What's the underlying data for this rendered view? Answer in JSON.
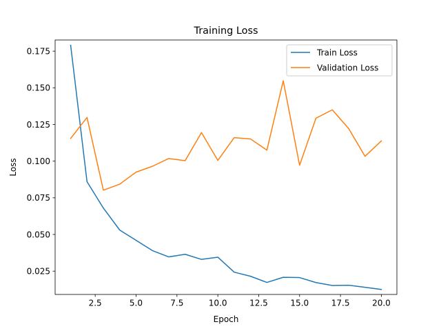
{
  "chart_data": {
    "type": "line",
    "title": "Training Loss",
    "xlabel": "Epoch",
    "ylabel": "Loss",
    "xlim": [
      0.05,
      20.95
    ],
    "ylim": [
      0.0091,
      0.1826
    ],
    "xticks": [
      2.5,
      5.0,
      7.5,
      10.0,
      12.5,
      15.0,
      17.5,
      20.0
    ],
    "xtick_labels": [
      "2.5",
      "5.0",
      "7.5",
      "10.0",
      "12.5",
      "15.0",
      "17.5",
      "20.0"
    ],
    "yticks": [
      0.025,
      0.05,
      0.075,
      0.1,
      0.125,
      0.15,
      0.175
    ],
    "ytick_labels": [
      "0.025",
      "0.050",
      "0.075",
      "0.100",
      "0.125",
      "0.150",
      "0.175"
    ],
    "grid": false,
    "legend_position": "upper-right",
    "x": [
      1,
      2,
      3,
      4,
      5,
      6,
      7,
      8,
      9,
      10,
      11,
      12,
      13,
      14,
      15,
      16,
      17,
      18,
      19,
      20
    ],
    "series": [
      {
        "name": "Train Loss",
        "color": "#1f77b4",
        "values": [
          0.179,
          0.086,
          0.068,
          0.053,
          0.046,
          0.039,
          0.0347,
          0.0365,
          0.033,
          0.0345,
          0.0243,
          0.0215,
          0.0173,
          0.0208,
          0.0206,
          0.0172,
          0.0152,
          0.0154,
          0.014,
          0.0125
        ]
      },
      {
        "name": "Validation Loss",
        "color": "#ff7f0e",
        "values": [
          0.1155,
          0.1298,
          0.0802,
          0.0843,
          0.0925,
          0.0965,
          0.1018,
          0.1003,
          0.1195,
          0.1005,
          0.116,
          0.1151,
          0.1075,
          0.1548,
          0.0972,
          0.1293,
          0.135,
          0.1222,
          0.1033,
          0.1138
        ]
      }
    ]
  }
}
